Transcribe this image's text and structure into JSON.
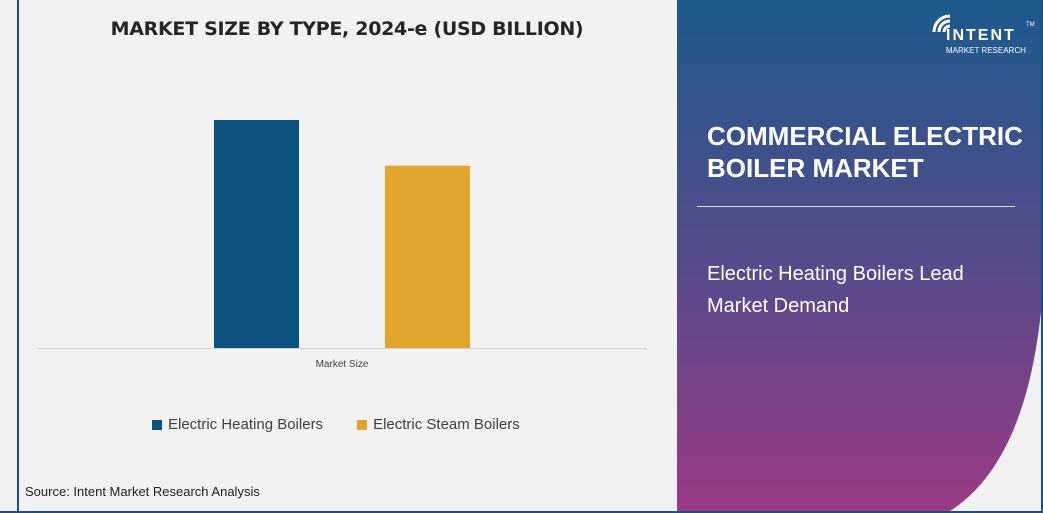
{
  "chart_data": {
    "type": "bar",
    "title": "MARKET SIZE BY TYPE, 2024-e (USD BILLION)",
    "categories": [
      "Market Size"
    ],
    "series": [
      {
        "name": "Electric Heating Boilers",
        "values": [
          1.0
        ],
        "color": "#0b537e"
      },
      {
        "name": "Electric Steam Boilers",
        "values": [
          0.8
        ],
        "color": "#e2a52c"
      }
    ],
    "value_note": "relative bar heights; no value axis shown",
    "ylim": [
      0,
      1.0
    ],
    "grid": false,
    "legend": "bottom"
  },
  "source": "Source: Intent Market Research Analysis",
  "panel": {
    "title": "COMMERCIAL ELECTRIC BOILER MARKET",
    "subtitle": "Electric Heating Boilers Lead Market Demand",
    "gradient_top": "#1d5a8c",
    "gradient_bottom": "#9b3a86"
  },
  "logo": {
    "name": "INTENT",
    "tagline": "MARKET RESEARCH",
    "tm": "TM"
  }
}
